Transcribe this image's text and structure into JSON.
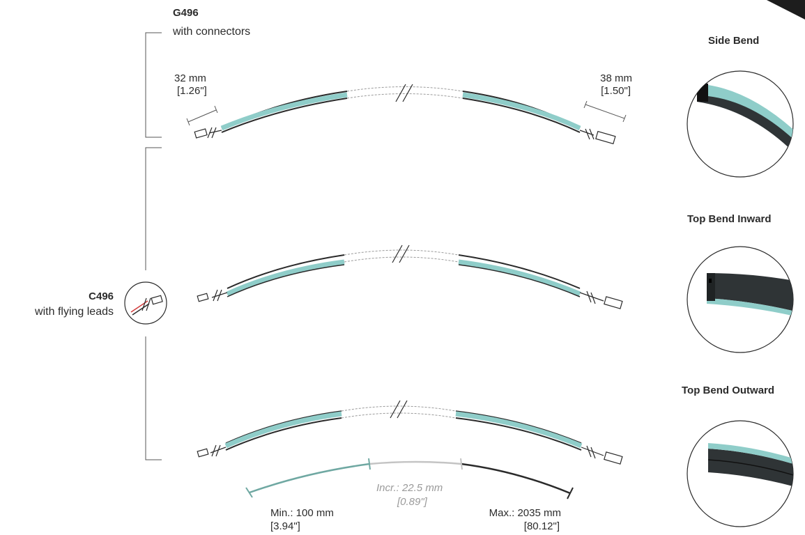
{
  "variants": {
    "g496": {
      "code": "G496",
      "desc": "with connectors"
    },
    "c496": {
      "code": "C496",
      "desc": "with flying leads"
    }
  },
  "dimensions": {
    "left_connector": {
      "mm": "32 mm",
      "inch": "[1.26\"]"
    },
    "right_connector": {
      "mm": "38 mm",
      "inch": "[1.50\"]"
    }
  },
  "length_scale": {
    "min": {
      "label": "Min.: 100 mm",
      "inch": "[3.94\"]"
    },
    "increment": {
      "label": "Incr.: 22.5 mm",
      "inch": "[0.89\"]"
    },
    "max": {
      "label": "Max.: 2035 mm",
      "inch": "[80.12\"]"
    }
  },
  "bend_types": [
    {
      "title": "Side Bend",
      "icon": "side-bend-profile-icon"
    },
    {
      "title": "Top Bend Inward",
      "icon": "top-bend-inward-profile-icon"
    },
    {
      "title": "Top Bend Outward",
      "icon": "top-bend-outward-profile-icon"
    }
  ],
  "colors": {
    "diffuser": "#8fcdc9",
    "profile": "#2a2a2a",
    "min_segment": "#6fa8a2",
    "incr_segment": "#c4c4c4",
    "max_segment": "#2a2a2a",
    "text": "#2b2b2b"
  }
}
